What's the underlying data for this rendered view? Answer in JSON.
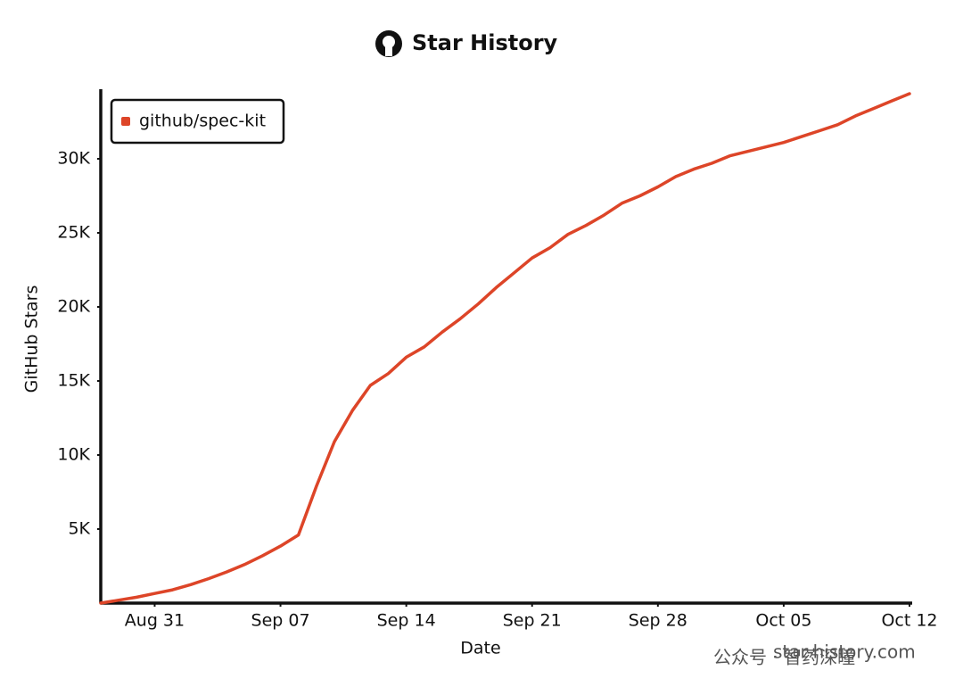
{
  "chart_data": {
    "type": "line",
    "title": "Star History",
    "x_label": "Date",
    "y_label": "GitHub Stars",
    "x": [
      "Aug 28",
      "Aug 29",
      "Aug 30",
      "Aug 31",
      "Sep 01",
      "Sep 02",
      "Sep 03",
      "Sep 04",
      "Sep 05",
      "Sep 06",
      "Sep 07",
      "Sep 08",
      "Sep 09",
      "Sep 10",
      "Sep 11",
      "Sep 12",
      "Sep 13",
      "Sep 14",
      "Sep 15",
      "Sep 16",
      "Sep 17",
      "Sep 18",
      "Sep 19",
      "Sep 20",
      "Sep 21",
      "Sep 22",
      "Sep 23",
      "Sep 24",
      "Sep 25",
      "Sep 26",
      "Sep 27",
      "Sep 28",
      "Sep 29",
      "Sep 30",
      "Oct 01",
      "Oct 02",
      "Oct 03",
      "Oct 04",
      "Oct 05",
      "Oct 06",
      "Oct 07",
      "Oct 08",
      "Oct 09",
      "Oct 10",
      "Oct 11",
      "Oct 12"
    ],
    "series": [
      {
        "name": "github/spec-kit",
        "color": "#dd4528",
        "values": [
          0,
          200,
          400,
          650,
          900,
          1250,
          1650,
          2100,
          2600,
          3200,
          3850,
          4600,
          7900,
          10900,
          13000,
          14700,
          15500,
          16600,
          17300,
          18300,
          19200,
          20200,
          21300,
          22300,
          23300,
          24000,
          24900,
          25500,
          26200,
          27000,
          27500,
          28100,
          28800,
          29300,
          29700,
          30200,
          30500,
          30800,
          31100,
          31500,
          31900,
          32300,
          32900,
          33400,
          33900,
          34400
        ]
      }
    ],
    "ylim": [
      0,
      35000
    ],
    "yticks": [
      {
        "value": 5000,
        "label": "5K"
      },
      {
        "value": 10000,
        "label": "10K"
      },
      {
        "value": 15000,
        "label": "15K"
      },
      {
        "value": 20000,
        "label": "20K"
      },
      {
        "value": 25000,
        "label": "25K"
      },
      {
        "value": 30000,
        "label": "30K"
      }
    ],
    "xticks": [
      "Aug 31",
      "Sep 07",
      "Sep 14",
      "Sep 21",
      "Sep 28",
      "Oct 05",
      "Oct 12"
    ],
    "legend": "top-left",
    "watermark": "star-history.com",
    "overlay": "公众号 · 智药深瞳"
  }
}
